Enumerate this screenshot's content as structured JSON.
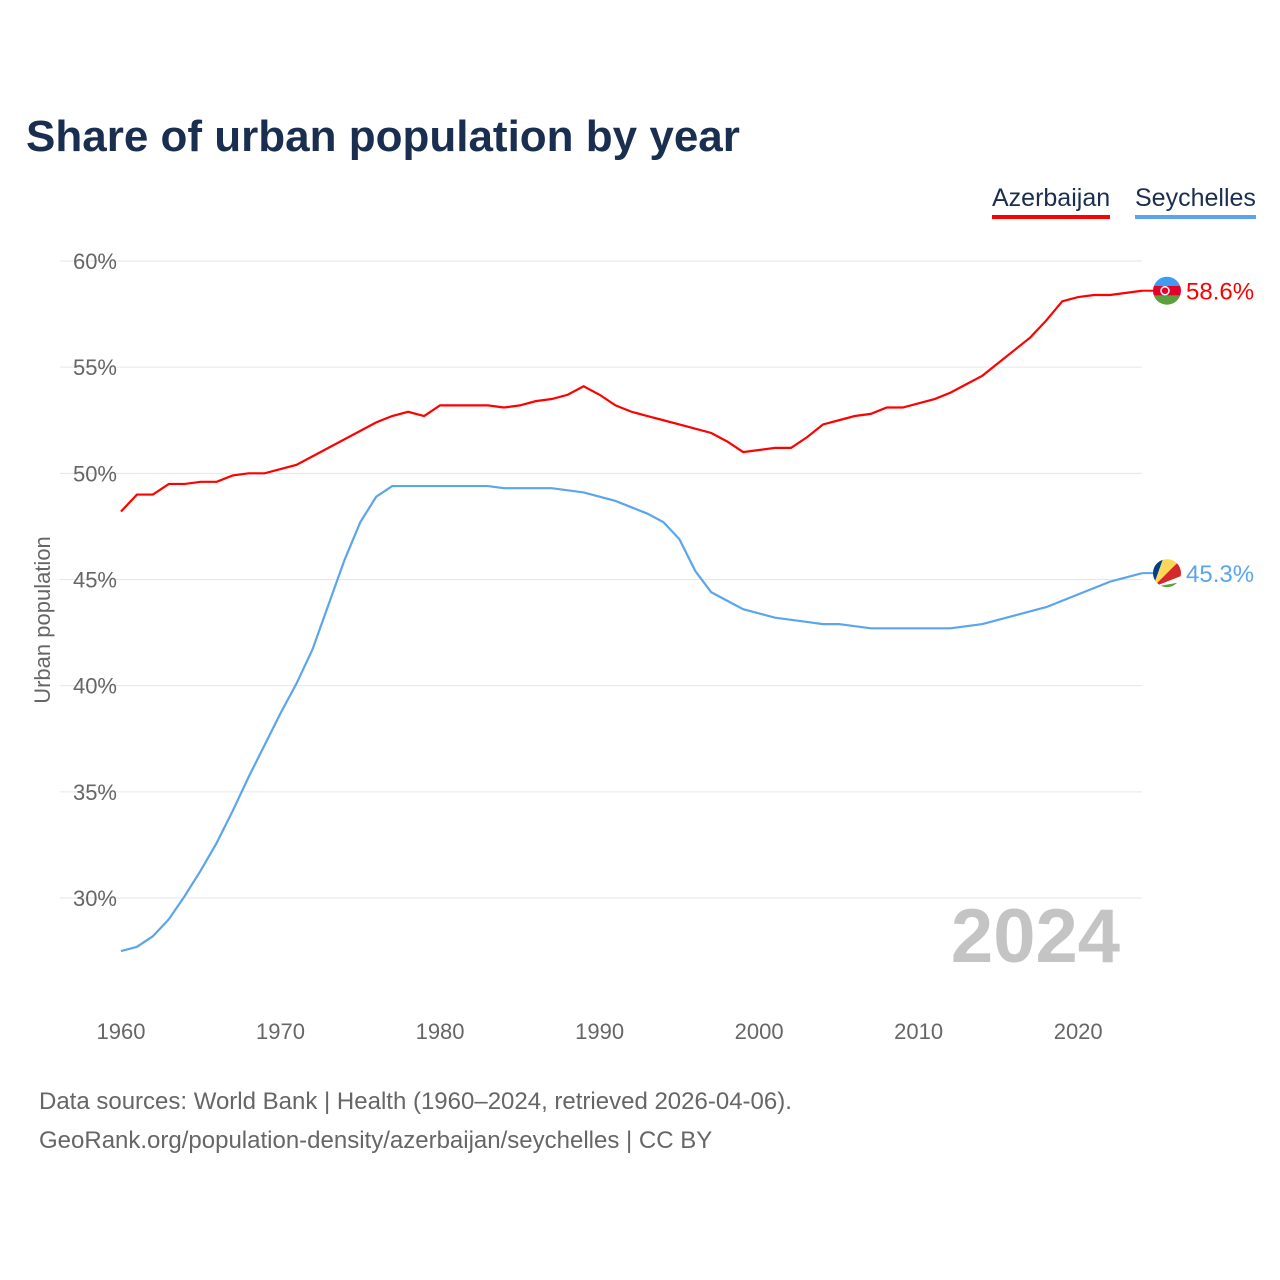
{
  "title": "Share of urban population by year",
  "legend": [
    {
      "label": "Azerbaijan",
      "color": "#ff0000"
    },
    {
      "label": "Seychelles",
      "color": "#5aa5ec"
    }
  ],
  "source_line1": "Data sources: World Bank | Health (1960–2024, retrieved 2026-04-06).",
  "source_line2": "GeoRank.org/population-density/azerbaijan/seychelles | CC BY",
  "chart_data": {
    "type": "line",
    "title": "Share of urban population by year",
    "xlabel": "",
    "ylabel": "Urban population",
    "xlim": [
      1960,
      2024
    ],
    "ylim": [
      25,
      60
    ],
    "yticks": [
      30,
      35,
      40,
      45,
      50,
      55,
      60
    ],
    "ytick_labels": [
      "30%",
      "35%",
      "40%",
      "45%",
      "50%",
      "55%",
      "60%"
    ],
    "xticks": [
      1960,
      1970,
      1980,
      1990,
      2000,
      2010,
      2020
    ],
    "xtick_labels": [
      "1960",
      "1970",
      "1980",
      "1990",
      "2000",
      "2010",
      "2020"
    ],
    "year_watermark": "2024",
    "grid": true,
    "legend_position": "top-right",
    "x": [
      1960,
      1961,
      1962,
      1963,
      1964,
      1965,
      1966,
      1967,
      1968,
      1969,
      1970,
      1971,
      1972,
      1973,
      1974,
      1975,
      1976,
      1977,
      1978,
      1979,
      1980,
      1981,
      1982,
      1983,
      1984,
      1985,
      1986,
      1987,
      1988,
      1989,
      1990,
      1991,
      1992,
      1993,
      1994,
      1995,
      1996,
      1997,
      1998,
      1999,
      2000,
      2001,
      2002,
      2003,
      2004,
      2005,
      2006,
      2007,
      2008,
      2009,
      2010,
      2011,
      2012,
      2013,
      2014,
      2015,
      2016,
      2017,
      2018,
      2019,
      2020,
      2021,
      2022,
      2023,
      2024
    ],
    "series": [
      {
        "name": "Azerbaijan",
        "color": "#ff0000",
        "end_label": "58.6%",
        "values": [
          48.2,
          49.0,
          49.0,
          49.5,
          49.5,
          49.6,
          49.6,
          49.9,
          50.0,
          50.0,
          50.2,
          50.4,
          50.8,
          51.2,
          51.6,
          52.0,
          52.4,
          52.7,
          52.9,
          52.7,
          53.2,
          53.2,
          53.2,
          53.2,
          53.1,
          53.2,
          53.4,
          53.5,
          53.7,
          54.1,
          53.7,
          53.2,
          52.9,
          52.7,
          52.5,
          52.3,
          52.1,
          51.9,
          51.5,
          51.0,
          51.1,
          51.2,
          51.2,
          51.7,
          52.3,
          52.5,
          52.7,
          52.8,
          53.1,
          53.1,
          53.3,
          53.5,
          53.8,
          54.2,
          54.6,
          55.2,
          55.8,
          56.4,
          57.2,
          58.1,
          58.3,
          58.4,
          58.4,
          58.5,
          58.6
        ]
      },
      {
        "name": "Seychelles",
        "color": "#5aa5ec",
        "end_label": "45.3%",
        "values": [
          27.5,
          27.7,
          28.2,
          29.0,
          30.1,
          31.3,
          32.6,
          34.1,
          35.7,
          37.2,
          38.7,
          40.1,
          41.7,
          43.8,
          45.9,
          47.7,
          48.9,
          49.4,
          49.4,
          49.4,
          49.4,
          49.4,
          49.4,
          49.4,
          49.3,
          49.3,
          49.3,
          49.3,
          49.2,
          49.1,
          48.9,
          48.7,
          48.4,
          48.1,
          47.7,
          46.9,
          45.4,
          44.4,
          44.0,
          43.6,
          43.4,
          43.2,
          43.1,
          43.0,
          42.9,
          42.9,
          42.8,
          42.7,
          42.7,
          42.7,
          42.7,
          42.7,
          42.7,
          42.8,
          42.9,
          43.1,
          43.3,
          43.5,
          43.7,
          44.0,
          44.3,
          44.6,
          44.9,
          45.1,
          45.3
        ]
      }
    ]
  }
}
